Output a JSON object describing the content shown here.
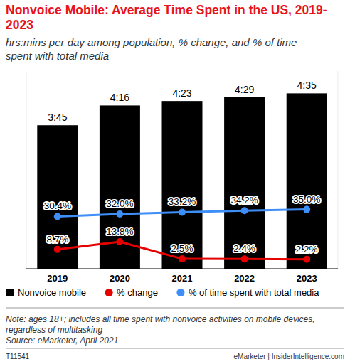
{
  "chart_data": {
    "type": "bar",
    "title": "Nonvoice Mobile: Average Time Spent in the US, 2019-2023",
    "subtitle": "hrs:mins per day among population, % change, and % of time spent with total media",
    "categories": [
      "2019",
      "2020",
      "2021",
      "2022",
      "2023"
    ],
    "series": [
      {
        "name": "Nonvoice mobile",
        "type": "bar",
        "color": "#000000",
        "values": [
          225,
          256,
          263,
          269,
          275
        ],
        "value_labels": [
          "3:45",
          "4:16",
          "4:23",
          "4:29",
          "4:35"
        ]
      },
      {
        "name": "% change",
        "type": "line",
        "axis": "y2",
        "color": "#e60000",
        "marker": "circle",
        "line_style": "solid",
        "values": [
          8.7,
          13.8,
          2.5,
          2.4,
          2.2
        ],
        "value_labels": [
          "8.7%",
          "13.8%",
          "2.5%",
          "2.4%",
          "2.2%"
        ]
      },
      {
        "name": "% of time spent with total media",
        "type": "line",
        "axis": "y2",
        "color": "#3d8ef7",
        "marker": "circle",
        "line_style": "solid",
        "values": [
          30.4,
          32.0,
          33.2,
          34.2,
          35.0
        ],
        "value_labels": [
          "30.4%",
          "32.0%",
          "33.2%",
          "34.2%",
          "35.0%"
        ]
      }
    ],
    "ylim": [
      0,
      310
    ],
    "y2lim": [
      -4,
      126
    ],
    "tick_labels": "x",
    "grid": false,
    "data_labels": true,
    "legend": "bottom",
    "note": "Note: ages 18+; includes all time spent with nonvoice activities on mobile devices, regardless of multitasking",
    "source": "Source: eMarketer, April 2021",
    "chart_id": "T11541",
    "credit": "eMarketer | InsiderIntelligence.com"
  }
}
